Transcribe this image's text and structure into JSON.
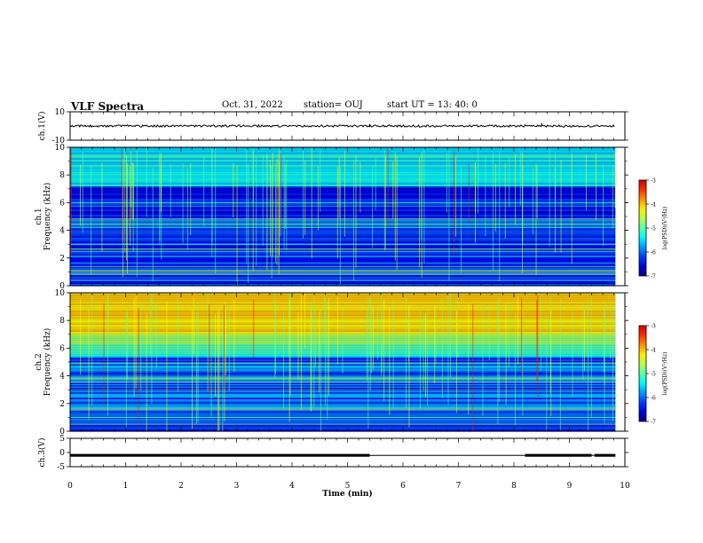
{
  "header": {
    "title": "VLF Spectra",
    "date": "Oct. 31, 2022",
    "station": "station= OUJ",
    "start": "start  UT =   13: 40: 0"
  },
  "chart_data": [
    {
      "type": "line",
      "panel": "ch1-waveform",
      "ylabel": "ch.1(V)",
      "ylim": [
        -10,
        10
      ],
      "ytick_labels": [
        "10",
        "-10"
      ],
      "xlim": [
        0,
        10
      ],
      "baseline": 0,
      "spikes": [
        {
          "x": 5.4,
          "y": 1.5
        },
        {
          "x": 8.5,
          "y": 2.0
        }
      ],
      "data_extent_max_x": 9.83
    },
    {
      "type": "heatmap",
      "panel": "ch1-spectrogram",
      "ylabel": "ch.1\nFrequency  (kHz)",
      "ylim": [
        0,
        10
      ],
      "ytick_labels": [
        "0",
        "2",
        "4",
        "6",
        "8",
        "10"
      ],
      "xlim": [
        0,
        10
      ],
      "colorbar": {
        "label": "log(PSD)(V²/Hz)",
        "range": [
          -7,
          -3
        ],
        "tick_labels": [
          "-3",
          "-4",
          "-5",
          "-6",
          "-7"
        ]
      }
    },
    {
      "type": "heatmap",
      "panel": "ch2-spectrogram",
      "ylabel": "ch.2\nFrequency  (kHz)",
      "ylim": [
        0,
        10
      ],
      "ytick_labels": [
        "0",
        "2",
        "4",
        "6",
        "8",
        "10"
      ],
      "xlim": [
        0,
        10
      ],
      "colorbar": {
        "label": "log(PSD)(V²/Hz)",
        "range": [
          -7,
          -3
        ],
        "tick_labels": [
          "-3",
          "-4",
          "-5",
          "-6",
          "-7"
        ]
      }
    },
    {
      "type": "line",
      "panel": "ch3-waveform",
      "ylabel": "ch.3(V)",
      "ylim": [
        -5,
        5
      ],
      "ytick_labels": [
        "5",
        "0",
        "-5"
      ],
      "xlim": [
        0,
        10
      ],
      "xlabel": "Time  (min)",
      "xtick_labels": [
        "0",
        "1",
        "2",
        "3",
        "4",
        "5",
        "6",
        "7",
        "8",
        "9",
        "10"
      ],
      "segments": [
        {
          "x0": 0,
          "x1": 5.4,
          "y": -1.0
        },
        {
          "x0": 5.4,
          "x1": 8.2,
          "y": -1.0,
          "weight": "thin"
        },
        {
          "x0": 8.2,
          "x1": 9.4,
          "y": -1.0
        },
        {
          "x0": 9.4,
          "x1": 9.45,
          "y": -1.0,
          "weight": "thin"
        },
        {
          "x0": 9.45,
          "x1": 9.83,
          "y": -1.0
        }
      ]
    }
  ]
}
